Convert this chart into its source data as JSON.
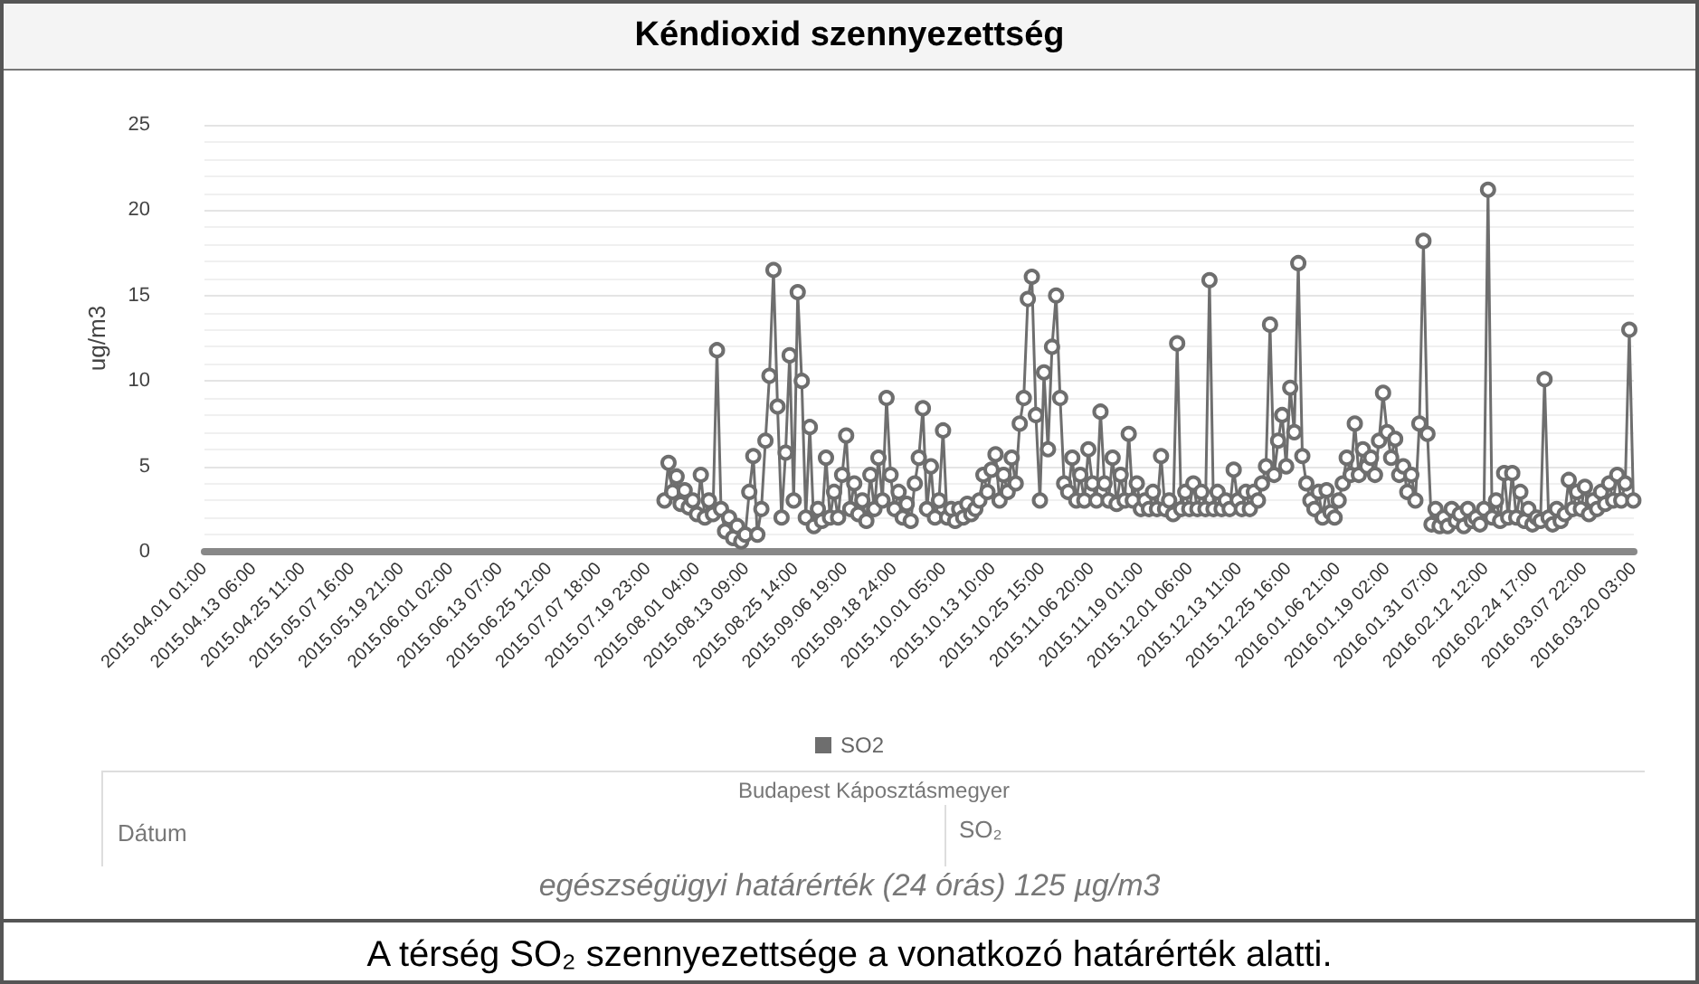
{
  "chart_data": {
    "type": "line",
    "title": "Kéndioxid szennyezettség",
    "ylabel": "ug/m3",
    "annotations": [
      "Budapest Káposztásmegyer",
      "Dátum",
      "SO₂",
      "egészségügyi határérték (24 órás) 125 µg/m3",
      "A térség SO₂ szennyezettsége a vonatkozó határérték alatti."
    ],
    "x": [
      "2015-07-24",
      "2015-07-25",
      "2015-07-26",
      "2015-07-27",
      "2015-07-28",
      "2015-07-29",
      "2015-07-30",
      "2015-07-31",
      "2015-08-01",
      "2015-08-02",
      "2015-08-03",
      "2015-08-04",
      "2015-08-05",
      "2015-08-06",
      "2015-08-07",
      "2015-08-08",
      "2015-08-09",
      "2015-08-10",
      "2015-08-11",
      "2015-08-12",
      "2015-08-13",
      "2015-08-14",
      "2015-08-15",
      "2015-08-16",
      "2015-08-17",
      "2015-08-18",
      "2015-08-19",
      "2015-08-20",
      "2015-08-21",
      "2015-08-22",
      "2015-08-23",
      "2015-08-24",
      "2015-08-25",
      "2015-08-26",
      "2015-08-27",
      "2015-08-28",
      "2015-08-29",
      "2015-08-30",
      "2015-08-31",
      "2015-09-01",
      "2015-09-02",
      "2015-09-03",
      "2015-09-04",
      "2015-09-05",
      "2015-09-06",
      "2015-09-07",
      "2015-09-08",
      "2015-09-09",
      "2015-09-10",
      "2015-09-11",
      "2015-09-12",
      "2015-09-13",
      "2015-09-14",
      "2015-09-15",
      "2015-09-16",
      "2015-09-17",
      "2015-09-18",
      "2015-09-19",
      "2015-09-20",
      "2015-09-21",
      "2015-09-22",
      "2015-09-23",
      "2015-09-24",
      "2015-09-25",
      "2015-09-26",
      "2015-09-27",
      "2015-09-28",
      "2015-09-29",
      "2015-09-30",
      "2015-10-01",
      "2015-10-02",
      "2015-10-03",
      "2015-10-04",
      "2015-10-05",
      "2015-10-06",
      "2015-10-07",
      "2015-10-08",
      "2015-10-09",
      "2015-10-10",
      "2015-10-11",
      "2015-10-12",
      "2015-10-13",
      "2015-10-14",
      "2015-10-15",
      "2015-10-16",
      "2015-10-17",
      "2015-10-18",
      "2015-10-19",
      "2015-10-20",
      "2015-10-21",
      "2015-10-22",
      "2015-10-23",
      "2015-10-24",
      "2015-10-25",
      "2015-10-26",
      "2015-10-27",
      "2015-10-28",
      "2015-10-29",
      "2015-10-30",
      "2015-10-31",
      "2015-11-01",
      "2015-11-02",
      "2015-11-03",
      "2015-11-04",
      "2015-11-05",
      "2015-11-06",
      "2015-11-07",
      "2015-11-08",
      "2015-11-09",
      "2015-11-10",
      "2015-11-11",
      "2015-11-12",
      "2015-11-13",
      "2015-11-14",
      "2015-11-15",
      "2015-11-16",
      "2015-11-17",
      "2015-11-18",
      "2015-11-19",
      "2015-11-20",
      "2015-11-21",
      "2015-11-22",
      "2015-11-23",
      "2015-11-24",
      "2015-11-25",
      "2015-11-26",
      "2015-11-27",
      "2015-11-28",
      "2015-11-29",
      "2015-11-30",
      "2015-12-01",
      "2015-12-02",
      "2015-12-03",
      "2015-12-04",
      "2015-12-05",
      "2015-12-06",
      "2015-12-07",
      "2015-12-08",
      "2015-12-09",
      "2015-12-10",
      "2015-12-11",
      "2015-12-12",
      "2015-12-13",
      "2015-12-14",
      "2015-12-15",
      "2015-12-16",
      "2015-12-17",
      "2015-12-18",
      "2015-12-19",
      "2015-12-20",
      "2015-12-21",
      "2015-12-22",
      "2015-12-23",
      "2015-12-24",
      "2015-12-25",
      "2015-12-26",
      "2015-12-27",
      "2015-12-28",
      "2015-12-29",
      "2015-12-30",
      "2015-12-31",
      "2016-01-01",
      "2016-01-02",
      "2016-01-03",
      "2016-01-04",
      "2016-01-05",
      "2016-01-06",
      "2016-01-07",
      "2016-01-08",
      "2016-01-09",
      "2016-01-10",
      "2016-01-11",
      "2016-01-12",
      "2016-01-13",
      "2016-01-14",
      "2016-01-15",
      "2016-01-16",
      "2016-01-17",
      "2016-01-18",
      "2016-01-19",
      "2016-01-20",
      "2016-01-21",
      "2016-01-22",
      "2016-01-23",
      "2016-01-24",
      "2016-01-25",
      "2016-01-26",
      "2016-01-27",
      "2016-01-28",
      "2016-01-29",
      "2016-01-30",
      "2016-01-31",
      "2016-02-01",
      "2016-02-02",
      "2016-02-03",
      "2016-02-04",
      "2016-02-05",
      "2016-02-06",
      "2016-02-07",
      "2016-02-08",
      "2016-02-09",
      "2016-02-10",
      "2016-02-11",
      "2016-02-12",
      "2016-02-13",
      "2016-02-14",
      "2016-02-15",
      "2016-02-16",
      "2016-02-17",
      "2016-02-18",
      "2016-02-19",
      "2016-02-20",
      "2016-02-21",
      "2016-02-22",
      "2016-02-23",
      "2016-02-24",
      "2016-02-25",
      "2016-02-26",
      "2016-02-27",
      "2016-02-28",
      "2016-02-29",
      "2016-03-01",
      "2016-03-02",
      "2016-03-03",
      "2016-03-04",
      "2016-03-05",
      "2016-03-06",
      "2016-03-07",
      "2016-03-08",
      "2016-03-09",
      "2016-03-10",
      "2016-03-11",
      "2016-03-12",
      "2016-03-13",
      "2016-03-14",
      "2016-03-15",
      "2016-03-16",
      "2016-03-17",
      "2016-03-18",
      "2016-03-19",
      "2016-03-20"
    ],
    "series": [
      {
        "name": "SO2",
        "color": "#6e6e6e",
        "values": [
          3.0,
          5.2,
          3.5,
          4.4,
          2.8,
          3.6,
          2.6,
          3.0,
          2.2,
          4.5,
          2.0,
          3.0,
          2.2,
          11.8,
          2.5,
          1.2,
          2.0,
          0.8,
          1.5,
          0.6,
          1.0,
          3.5,
          5.6,
          1.0,
          2.5,
          6.5,
          10.3,
          16.5,
          8.5,
          2.0,
          5.8,
          11.5,
          3.0,
          15.2,
          10.0,
          2.0,
          7.3,
          1.5,
          2.5,
          1.8,
          5.5,
          2.0,
          3.5,
          2.0,
          4.5,
          6.8,
          2.5,
          4.0,
          2.2,
          3.0,
          1.8,
          4.5,
          2.5,
          5.5,
          3.0,
          9.0,
          4.5,
          2.5,
          3.5,
          2.0,
          2.8,
          1.8,
          4.0,
          5.5,
          8.4,
          2.5,
          5.0,
          2.0,
          3.0,
          7.1,
          2.0,
          2.5,
          1.8,
          2.5,
          2.0,
          2.8,
          2.2,
          2.5,
          3.0,
          4.5,
          3.5,
          4.8,
          5.7,
          3.0,
          4.5,
          3.5,
          5.5,
          4.0,
          7.5,
          9.0,
          14.8,
          16.1,
          8.0,
          3.0,
          10.5,
          6.0,
          12.0,
          15.0,
          9.0,
          4.0,
          3.5,
          5.5,
          3.0,
          4.5,
          3.0,
          6.0,
          4.0,
          3.0,
          8.2,
          4.0,
          3.0,
          5.5,
          2.8,
          4.5,
          3.0,
          6.9,
          3.0,
          4.0,
          2.5,
          3.0,
          2.5,
          3.5,
          2.5,
          5.6,
          2.5,
          3.0,
          2.2,
          12.2,
          2.5,
          3.5,
          2.5,
          4.0,
          2.5,
          3.5,
          2.5,
          15.9,
          2.5,
          3.5,
          2.5,
          3.0,
          2.5,
          4.8,
          3.0,
          2.5,
          3.5,
          2.5,
          3.5,
          3.0,
          4.0,
          5.0,
          13.3,
          4.5,
          6.5,
          8.0,
          5.0,
          9.6,
          7.0,
          16.9,
          5.6,
          4.0,
          3.0,
          2.5,
          3.5,
          2.0,
          3.6,
          2.3,
          2.0,
          3.0,
          4.0,
          5.5,
          4.5,
          7.5,
          4.5,
          6.0,
          5.0,
          5.5,
          4.5,
          6.5,
          9.3,
          7.0,
          5.5,
          6.6,
          4.5,
          5.0,
          3.5,
          4.5,
          3.0,
          7.5,
          18.2,
          6.9,
          1.6,
          2.5,
          1.5,
          2.0,
          1.5,
          2.5,
          1.8,
          2.2,
          1.5,
          2.5,
          1.8,
          2.0,
          1.6,
          2.5,
          21.2,
          2.0,
          3.0,
          1.8,
          4.6,
          2.0,
          4.6,
          2.0,
          3.5,
          1.8,
          2.5,
          1.6,
          2.0,
          1.8,
          10.1,
          2.0,
          1.6,
          2.5,
          1.8,
          2.2,
          4.2,
          2.5,
          3.5,
          2.5,
          3.8,
          2.2,
          3.0,
          2.5,
          3.5,
          2.8,
          4.0,
          3.0,
          4.5,
          3.0,
          4.0,
          13.0,
          3.0
        ]
      }
    ],
    "xlim": [
      "2015-04-01T01:00",
      "2016-03-20T03:00"
    ],
    "xticks": [
      {
        "value": "2015-04-01T01:00",
        "label": "2015.04.01 01:00"
      },
      {
        "value": "2015-04-13T06:00",
        "label": "2015.04.13 06:00"
      },
      {
        "value": "2015-04-25T11:00",
        "label": "2015.04.25 11:00"
      },
      {
        "value": "2015-05-07T16:00",
        "label": "2015.05.07 16:00"
      },
      {
        "value": "2015-05-19T21:00",
        "label": "2015.05.19 21:00"
      },
      {
        "value": "2015-06-01T02:00",
        "label": "2015.06.01 02:00"
      },
      {
        "value": "2015-06-13T07:00",
        "label": "2015.06.13 07:00"
      },
      {
        "value": "2015-06-25T12:00",
        "label": "2015.06.25 12:00"
      },
      {
        "value": "2015-07-07T18:00",
        "label": "2015.07.07 18:00"
      },
      {
        "value": "2015-07-19T23:00",
        "label": "2015.07.19 23:00"
      },
      {
        "value": "2015-08-01T04:00",
        "label": "2015.08.01 04:00"
      },
      {
        "value": "2015-08-13T09:00",
        "label": "2015.08.13 09:00"
      },
      {
        "value": "2015-08-25T14:00",
        "label": "2015.08.25 14:00"
      },
      {
        "value": "2015-09-06T19:00",
        "label": "2015.09.06 19:00"
      },
      {
        "value": "2015-09-19T00:00",
        "label": "2015.09.18 24:00"
      },
      {
        "value": "2015-10-01T05:00",
        "label": "2015.10.01 05:00"
      },
      {
        "value": "2015-10-13T10:00",
        "label": "2015.10.13 10:00"
      },
      {
        "value": "2015-10-25T15:00",
        "label": "2015.10.25 15:00"
      },
      {
        "value": "2015-11-06T20:00",
        "label": "2015.11.06 20:00"
      },
      {
        "value": "2015-11-19T01:00",
        "label": "2015.11.19 01:00"
      },
      {
        "value": "2015-12-01T06:00",
        "label": "2015.12.01 06:00"
      },
      {
        "value": "2015-12-13T11:00",
        "label": "2015.12.13 11:00"
      },
      {
        "value": "2015-12-25T16:00",
        "label": "2015.12.25 16:00"
      },
      {
        "value": "2016-01-06T21:00",
        "label": "2016.01.06 21:00"
      },
      {
        "value": "2016-01-19T02:00",
        "label": "2016.01.19 02:00"
      },
      {
        "value": "2016-01-31T07:00",
        "label": "2016.01.31 07:00"
      },
      {
        "value": "2016-02-12T12:00",
        "label": "2016.02.12 12:00"
      },
      {
        "value": "2016-02-24T17:00",
        "label": "2016.02.24 17:00"
      },
      {
        "value": "2016-03-07T22:00",
        "label": "2016.03.07 22:00"
      },
      {
        "value": "2016-03-20T03:00",
        "label": "2016.03.20 03:00"
      }
    ],
    "ylim": [
      0,
      25
    ],
    "yticks": [
      0,
      5,
      10,
      15,
      20,
      25
    ],
    "grid": "y",
    "legend": "bottom",
    "marker": "circle",
    "line_style": "solid"
  }
}
